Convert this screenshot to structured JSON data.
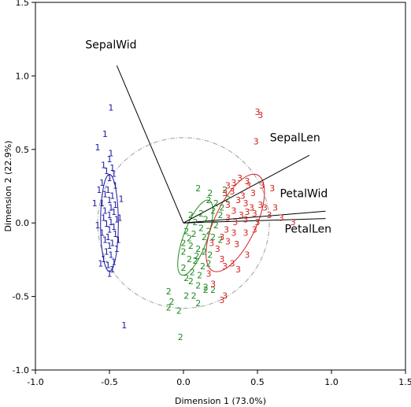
{
  "chart_data": {
    "type": "scatter",
    "title": "",
    "xlabel": "Dimension 1 (73.0%)",
    "ylabel": "Dimension 2 (22.9%)",
    "xlim": [
      -1.0,
      1.5
    ],
    "ylim": [
      -1.0,
      1.5
    ],
    "xticks": [
      "-1.0",
      "-0.5",
      "0.0",
      "0.5",
      "1.0",
      "1.5"
    ],
    "yticks": [
      "-1.0",
      "-0.5",
      "0.0",
      "0.5",
      "1.0",
      "1.5"
    ],
    "grid": false,
    "legend": "none",
    "colors": {
      "1": "#1a1aa0",
      "2": "#1f8a1f",
      "3": "#d42020",
      "circle": "#a0a0a0",
      "vector": "#000000"
    },
    "vectors": [
      {
        "name": "SepalWid",
        "x": -0.45,
        "y": 1.07
      },
      {
        "name": "SepalLen",
        "x": 0.85,
        "y": 0.46
      },
      {
        "name": "PetalWid",
        "x": 0.96,
        "y": 0.08
      },
      {
        "name": "PetalLen",
        "x": 0.96,
        "y": 0.03
      }
    ],
    "unit_circle": {
      "cx": 0.0,
      "cy": 0.0,
      "r": 0.58
    },
    "ellipses": [
      {
        "group": "1",
        "cx": -0.5,
        "cy": 0.0,
        "rx": 0.06,
        "ry": 0.33,
        "angle": 0
      },
      {
        "group": "2",
        "cx": 0.08,
        "cy": -0.1,
        "rx": 0.08,
        "ry": 0.27,
        "angle": 20
      },
      {
        "group": "3",
        "cx": 0.35,
        "cy": 0.0,
        "rx": 0.14,
        "ry": 0.36,
        "angle": 25
      }
    ],
    "series": [
      {
        "name": "1",
        "label": "1",
        "points": [
          [
            -0.49,
            0.78
          ],
          [
            -0.53,
            0.6
          ],
          [
            -0.58,
            0.51
          ],
          [
            -0.49,
            0.47
          ],
          [
            -0.5,
            0.43
          ],
          [
            -0.54,
            0.39
          ],
          [
            -0.48,
            0.37
          ],
          [
            -0.52,
            0.35
          ],
          [
            -0.47,
            0.33
          ],
          [
            -0.5,
            0.3
          ],
          [
            -0.55,
            0.27
          ],
          [
            -0.46,
            0.25
          ],
          [
            -0.51,
            0.22
          ],
          [
            -0.53,
            0.19
          ],
          [
            -0.48,
            0.18
          ],
          [
            -0.5,
            0.15
          ],
          [
            -0.55,
            0.13
          ],
          [
            -0.46,
            0.12
          ],
          [
            -0.49,
            0.1
          ],
          [
            -0.53,
            0.08
          ],
          [
            -0.6,
            0.13
          ],
          [
            -0.47,
            0.07
          ],
          [
            -0.5,
            0.05
          ],
          [
            -0.54,
            0.03
          ],
          [
            -0.45,
            0.02
          ],
          [
            -0.49,
            0.0
          ],
          [
            -0.52,
            -0.01
          ],
          [
            -0.47,
            -0.03
          ],
          [
            -0.5,
            -0.05
          ],
          [
            -0.55,
            -0.07
          ],
          [
            -0.46,
            -0.08
          ],
          [
            -0.51,
            -0.1
          ],
          [
            -0.53,
            -0.12
          ],
          [
            -0.48,
            -0.14
          ],
          [
            -0.5,
            -0.16
          ],
          [
            -0.45,
            -0.18
          ],
          [
            -0.52,
            -0.2
          ],
          [
            -0.49,
            -0.22
          ],
          [
            -0.54,
            -0.25
          ],
          [
            -0.47,
            -0.27
          ],
          [
            -0.51,
            -0.29
          ],
          [
            -0.48,
            -0.32
          ],
          [
            -0.56,
            -0.28
          ],
          [
            -0.5,
            -0.35
          ],
          [
            -0.43,
            0.03
          ],
          [
            -0.58,
            -0.02
          ],
          [
            -0.44,
            -0.12
          ],
          [
            -0.57,
            0.22
          ],
          [
            -0.42,
            0.16
          ],
          [
            -0.4,
            -0.7
          ]
        ]
      },
      {
        "name": "2",
        "label": "2",
        "points": [
          [
            0.1,
            0.23
          ],
          [
            0.18,
            0.2
          ],
          [
            0.28,
            0.22
          ],
          [
            0.17,
            0.15
          ],
          [
            0.22,
            0.13
          ],
          [
            0.3,
            0.16
          ],
          [
            0.2,
            0.08
          ],
          [
            0.12,
            0.06
          ],
          [
            0.05,
            0.05
          ],
          [
            0.25,
            0.05
          ],
          [
            0.15,
            0.02
          ],
          [
            0.22,
            -0.02
          ],
          [
            0.08,
            0.0
          ],
          [
            0.12,
            -0.04
          ],
          [
            0.17,
            -0.06
          ],
          [
            0.02,
            -0.06
          ],
          [
            0.07,
            -0.08
          ],
          [
            0.0,
            -0.14
          ],
          [
            0.05,
            -0.16
          ],
          [
            0.1,
            -0.18
          ],
          [
            0.14,
            -0.2
          ],
          [
            0.18,
            -0.22
          ],
          [
            0.04,
            -0.25
          ],
          [
            0.08,
            -0.26
          ],
          [
            0.13,
            -0.3
          ],
          [
            0.17,
            -0.28
          ],
          [
            0.0,
            -0.31
          ],
          [
            0.06,
            -0.34
          ],
          [
            0.11,
            -0.36
          ],
          [
            0.02,
            -0.38
          ],
          [
            0.05,
            -0.4
          ],
          [
            0.1,
            -0.43
          ],
          [
            0.15,
            -0.46
          ],
          [
            0.2,
            -0.46
          ],
          [
            0.02,
            -0.5
          ],
          [
            0.07,
            -0.5
          ],
          [
            -0.1,
            -0.47
          ],
          [
            -0.08,
            -0.54
          ],
          [
            -0.1,
            -0.58
          ],
          [
            -0.03,
            -0.6
          ],
          [
            0.1,
            -0.55
          ],
          [
            0.15,
            -0.44
          ],
          [
            0.0,
            -0.2
          ],
          [
            0.2,
            -0.1
          ],
          [
            0.25,
            -0.12
          ],
          [
            0.14,
            -0.1
          ],
          [
            0.04,
            -0.11
          ],
          [
            0.26,
            0.1
          ],
          [
            -0.02,
            -0.78
          ],
          [
            0.09,
            -0.23
          ]
        ]
      },
      {
        "name": "3",
        "label": "3",
        "points": [
          [
            0.5,
            0.75
          ],
          [
            0.52,
            0.73
          ],
          [
            0.49,
            0.55
          ],
          [
            0.3,
            0.25
          ],
          [
            0.34,
            0.27
          ],
          [
            0.38,
            0.3
          ],
          [
            0.43,
            0.28
          ],
          [
            0.44,
            0.25
          ],
          [
            0.33,
            0.21
          ],
          [
            0.28,
            0.2
          ],
          [
            0.4,
            0.18
          ],
          [
            0.47,
            0.2
          ],
          [
            0.53,
            0.25
          ],
          [
            0.6,
            0.23
          ],
          [
            0.37,
            0.15
          ],
          [
            0.42,
            0.13
          ],
          [
            0.46,
            0.1
          ],
          [
            0.52,
            0.12
          ],
          [
            0.3,
            0.12
          ],
          [
            0.34,
            0.08
          ],
          [
            0.39,
            0.05
          ],
          [
            0.43,
            0.07
          ],
          [
            0.48,
            0.06
          ],
          [
            0.55,
            0.1
          ],
          [
            0.62,
            0.1
          ],
          [
            0.3,
            0.03
          ],
          [
            0.35,
            0.0
          ],
          [
            0.42,
            0.02
          ],
          [
            0.5,
            0.0
          ],
          [
            0.58,
            0.05
          ],
          [
            0.66,
            0.03
          ],
          [
            0.74,
            0.0
          ],
          [
            0.29,
            -0.05
          ],
          [
            0.34,
            -0.07
          ],
          [
            0.42,
            -0.07
          ],
          [
            0.48,
            -0.05
          ],
          [
            0.26,
            -0.1
          ],
          [
            0.3,
            -0.13
          ],
          [
            0.36,
            -0.15
          ],
          [
            0.19,
            -0.14
          ],
          [
            0.23,
            -0.18
          ],
          [
            0.26,
            -0.25
          ],
          [
            0.28,
            -0.3
          ],
          [
            0.33,
            -0.28
          ],
          [
            0.43,
            -0.22
          ],
          [
            0.37,
            -0.32
          ],
          [
            0.17,
            -0.35
          ],
          [
            0.2,
            -0.42
          ],
          [
            0.28,
            -0.5
          ],
          [
            0.26,
            -0.53
          ]
        ]
      }
    ]
  }
}
